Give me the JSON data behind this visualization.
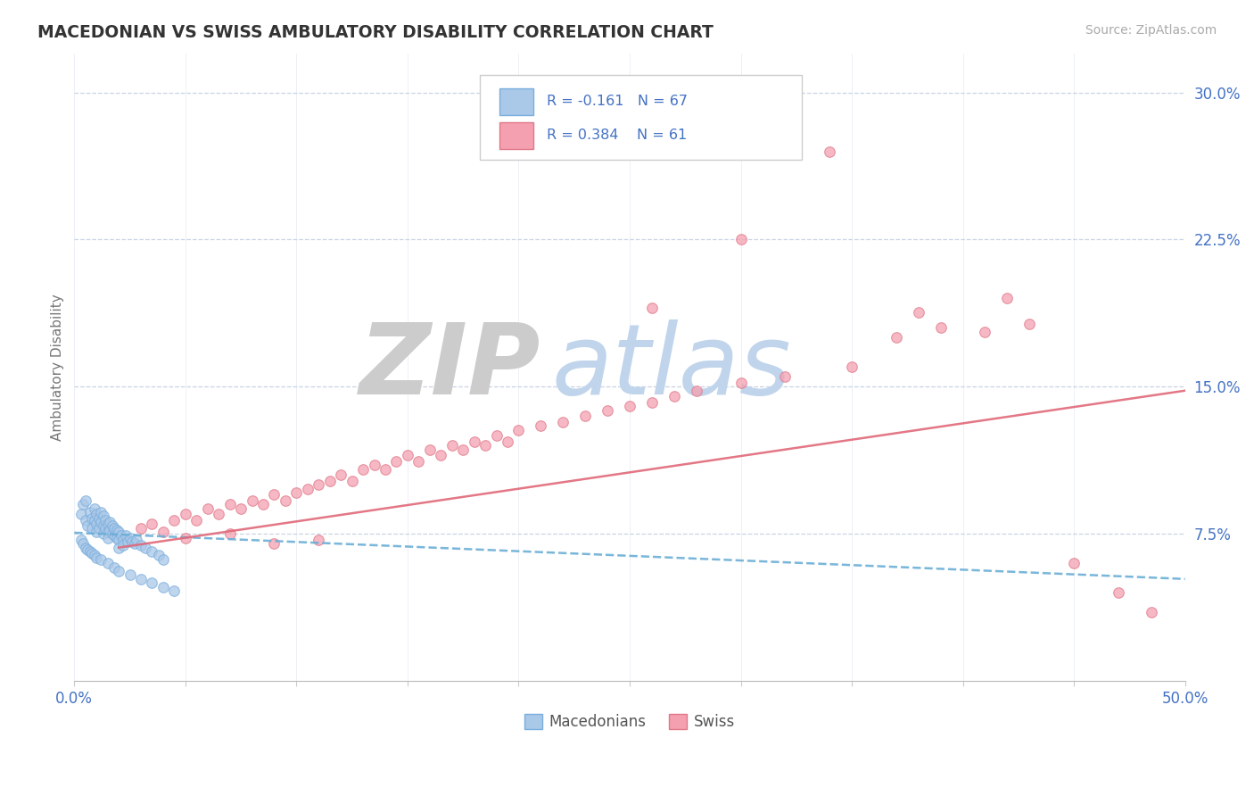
{
  "title": "MACEDONIAN VS SWISS AMBULATORY DISABILITY CORRELATION CHART",
  "source": "Source: ZipAtlas.com",
  "ylabel": "Ambulatory Disability",
  "xlim": [
    0.0,
    0.5
  ],
  "ylim": [
    0.0,
    0.32
  ],
  "xticks": [
    0.0,
    0.05,
    0.1,
    0.15,
    0.2,
    0.25,
    0.3,
    0.35,
    0.4,
    0.45,
    0.5
  ],
  "xticklabels": [
    "0.0%",
    "",
    "",
    "",
    "",
    "",
    "",
    "",
    "",
    "",
    "50.0%"
  ],
  "yticks": [
    0.075,
    0.15,
    0.225,
    0.3
  ],
  "yticklabels": [
    "7.5%",
    "15.0%",
    "22.5%",
    "30.0%"
  ],
  "macedonian_color": "#aac8e8",
  "swiss_color": "#f4a0b0",
  "macedonian_edge_color": "#7aaedd",
  "swiss_edge_color": "#e07888",
  "macedonian_line_color": "#6aaed6",
  "swiss_line_color": "#e06878",
  "legend_text_color": "#4472c4",
  "background_color": "#ffffff",
  "grid_color": "#c8d4e4",
  "mac_line_x0": 0.0,
  "mac_line_y0": 0.0756,
  "mac_line_x1": 0.5,
  "mac_line_y1": 0.052,
  "swi_line_x0": 0.02,
  "swi_line_y0": 0.068,
  "swi_line_x1": 0.5,
  "swi_line_y1": 0.148,
  "macedonian_points": [
    [
      0.003,
      0.085
    ],
    [
      0.004,
      0.09
    ],
    [
      0.005,
      0.092
    ],
    [
      0.005,
      0.082
    ],
    [
      0.006,
      0.079
    ],
    [
      0.007,
      0.086
    ],
    [
      0.008,
      0.083
    ],
    [
      0.008,
      0.078
    ],
    [
      0.009,
      0.088
    ],
    [
      0.009,
      0.082
    ],
    [
      0.01,
      0.085
    ],
    [
      0.01,
      0.08
    ],
    [
      0.01,
      0.076
    ],
    [
      0.011,
      0.083
    ],
    [
      0.011,
      0.078
    ],
    [
      0.012,
      0.086
    ],
    [
      0.012,
      0.081
    ],
    [
      0.013,
      0.084
    ],
    [
      0.013,
      0.079
    ],
    [
      0.013,
      0.075
    ],
    [
      0.014,
      0.082
    ],
    [
      0.014,
      0.078
    ],
    [
      0.015,
      0.08
    ],
    [
      0.015,
      0.076
    ],
    [
      0.015,
      0.073
    ],
    [
      0.016,
      0.081
    ],
    [
      0.016,
      0.077
    ],
    [
      0.017,
      0.079
    ],
    [
      0.017,
      0.075
    ],
    [
      0.018,
      0.078
    ],
    [
      0.018,
      0.074
    ],
    [
      0.019,
      0.077
    ],
    [
      0.019,
      0.073
    ],
    [
      0.02,
      0.076
    ],
    [
      0.02,
      0.072
    ],
    [
      0.02,
      0.068
    ],
    [
      0.021,
      0.074
    ],
    [
      0.022,
      0.072
    ],
    [
      0.022,
      0.069
    ],
    [
      0.023,
      0.074
    ],
    [
      0.024,
      0.071
    ],
    [
      0.025,
      0.073
    ],
    [
      0.026,
      0.071
    ],
    [
      0.027,
      0.07
    ],
    [
      0.028,
      0.072
    ],
    [
      0.03,
      0.069
    ],
    [
      0.032,
      0.068
    ],
    [
      0.035,
      0.066
    ],
    [
      0.038,
      0.064
    ],
    [
      0.04,
      0.062
    ],
    [
      0.003,
      0.072
    ],
    [
      0.004,
      0.07
    ],
    [
      0.005,
      0.068
    ],
    [
      0.006,
      0.067
    ],
    [
      0.007,
      0.066
    ],
    [
      0.008,
      0.065
    ],
    [
      0.009,
      0.064
    ],
    [
      0.01,
      0.063
    ],
    [
      0.012,
      0.062
    ],
    [
      0.015,
      0.06
    ],
    [
      0.018,
      0.058
    ],
    [
      0.02,
      0.056
    ],
    [
      0.025,
      0.054
    ],
    [
      0.03,
      0.052
    ],
    [
      0.035,
      0.05
    ],
    [
      0.04,
      0.048
    ],
    [
      0.045,
      0.046
    ]
  ],
  "swiss_points": [
    [
      0.03,
      0.078
    ],
    [
      0.035,
      0.08
    ],
    [
      0.04,
      0.076
    ],
    [
      0.045,
      0.082
    ],
    [
      0.05,
      0.085
    ],
    [
      0.055,
      0.082
    ],
    [
      0.06,
      0.088
    ],
    [
      0.065,
      0.085
    ],
    [
      0.07,
      0.09
    ],
    [
      0.075,
      0.088
    ],
    [
      0.08,
      0.092
    ],
    [
      0.085,
      0.09
    ],
    [
      0.09,
      0.095
    ],
    [
      0.095,
      0.092
    ],
    [
      0.1,
      0.096
    ],
    [
      0.105,
      0.098
    ],
    [
      0.11,
      0.1
    ],
    [
      0.115,
      0.102
    ],
    [
      0.12,
      0.105
    ],
    [
      0.125,
      0.102
    ],
    [
      0.13,
      0.108
    ],
    [
      0.135,
      0.11
    ],
    [
      0.14,
      0.108
    ],
    [
      0.145,
      0.112
    ],
    [
      0.15,
      0.115
    ],
    [
      0.155,
      0.112
    ],
    [
      0.16,
      0.118
    ],
    [
      0.165,
      0.115
    ],
    [
      0.17,
      0.12
    ],
    [
      0.175,
      0.118
    ],
    [
      0.18,
      0.122
    ],
    [
      0.185,
      0.12
    ],
    [
      0.19,
      0.125
    ],
    [
      0.195,
      0.122
    ],
    [
      0.2,
      0.128
    ],
    [
      0.21,
      0.13
    ],
    [
      0.22,
      0.132
    ],
    [
      0.23,
      0.135
    ],
    [
      0.24,
      0.138
    ],
    [
      0.25,
      0.14
    ],
    [
      0.26,
      0.142
    ],
    [
      0.27,
      0.145
    ],
    [
      0.28,
      0.148
    ],
    [
      0.3,
      0.152
    ],
    [
      0.32,
      0.155
    ],
    [
      0.35,
      0.16
    ],
    [
      0.37,
      0.175
    ],
    [
      0.39,
      0.18
    ],
    [
      0.41,
      0.178
    ],
    [
      0.43,
      0.182
    ],
    [
      0.26,
      0.19
    ],
    [
      0.3,
      0.225
    ],
    [
      0.34,
      0.27
    ],
    [
      0.38,
      0.188
    ],
    [
      0.42,
      0.195
    ],
    [
      0.45,
      0.06
    ],
    [
      0.47,
      0.045
    ],
    [
      0.485,
      0.035
    ],
    [
      0.05,
      0.073
    ],
    [
      0.07,
      0.075
    ],
    [
      0.09,
      0.07
    ],
    [
      0.11,
      0.072
    ]
  ]
}
